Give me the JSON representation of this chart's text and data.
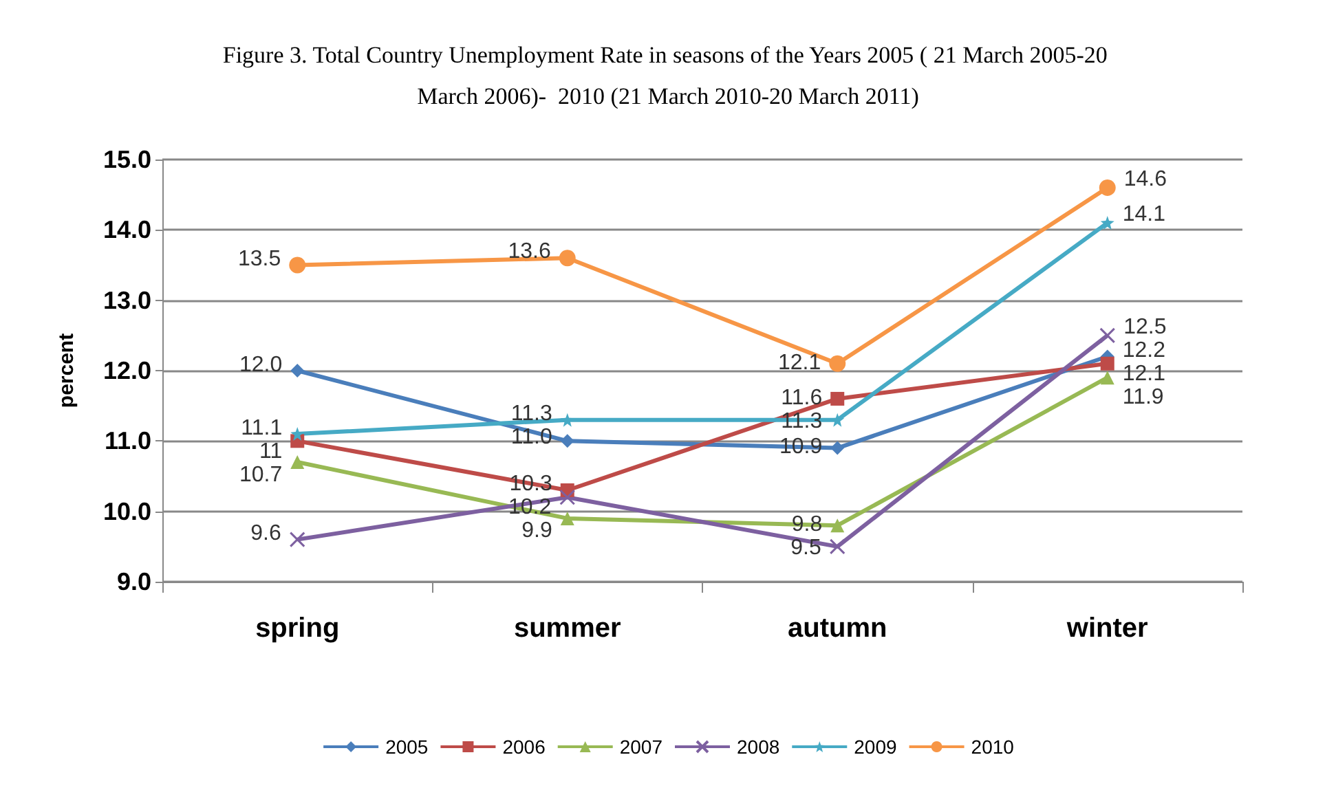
{
  "chart_data": {
    "type": "line",
    "title": "Figure 3. Total Country Unemployment Rate in seasons of the Years 2005 ( 21 March 2005-20 March 2006)-  2010 (21 March 2010-20 March 2011)",
    "ylabel": "percent",
    "categories": [
      "spring",
      "summer",
      "autumn",
      "winter"
    ],
    "ylim": [
      9,
      15
    ],
    "yticks": [
      {
        "value": 9,
        "label": "9.0"
      },
      {
        "value": 10,
        "label": "10.0"
      },
      {
        "value": 11,
        "label": "11.0"
      },
      {
        "value": 12,
        "label": "12.0"
      },
      {
        "value": 13,
        "label": "13.0"
      },
      {
        "value": 14,
        "label": "14.0"
      },
      {
        "value": 15,
        "label": "15.0"
      }
    ],
    "grid": "y",
    "legend": "bottom",
    "series": [
      {
        "name": "2005",
        "color": "#4a7ebb",
        "marker": "diamond",
        "values": [
          12.0,
          11.0,
          10.9,
          12.2
        ],
        "value_labels": [
          "12.0",
          "11.0",
          "10.9",
          "12.2"
        ]
      },
      {
        "name": "2006",
        "color": "#be4b48",
        "marker": "square",
        "values": [
          11,
          10.3,
          11.6,
          12.1
        ],
        "value_labels": [
          "11",
          "10.3",
          "11.6",
          "12.1"
        ]
      },
      {
        "name": "2007",
        "color": "#98b954",
        "marker": "triangle",
        "values": [
          10.7,
          9.9,
          9.8,
          11.9
        ],
        "value_labels": [
          "10.7",
          "9.9",
          "9.8",
          "11.9"
        ]
      },
      {
        "name": "2008",
        "color": "#7d60a0",
        "marker": "cross",
        "values": [
          9.6,
          10.2,
          9.5,
          12.5
        ],
        "value_labels": [
          "9.6",
          "10.2",
          "9.5",
          "12.5"
        ]
      },
      {
        "name": "2009",
        "color": "#46aac5",
        "marker": "star",
        "values": [
          11.1,
          11.3,
          11.3,
          14.1
        ],
        "value_labels": [
          "11.1",
          "11.3",
          "11.3",
          "14.1"
        ]
      },
      {
        "name": "2010",
        "color": "#f79646",
        "marker": "circle",
        "values": [
          13.5,
          13.6,
          12.1,
          14.6
        ],
        "value_labels": [
          "13.5",
          "13.6",
          "12.1",
          "14.6"
        ]
      }
    ]
  }
}
